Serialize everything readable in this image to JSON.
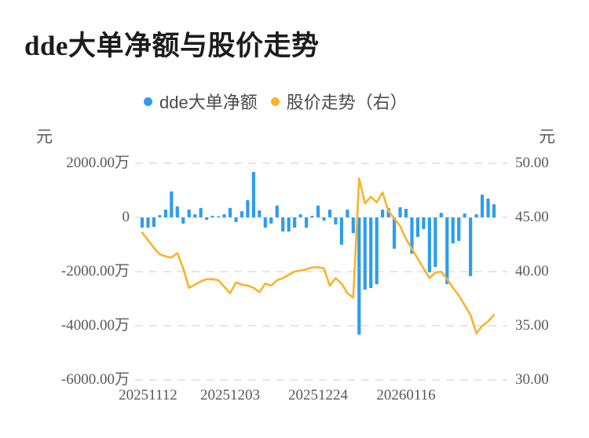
{
  "header": {
    "title": "dde大单净额与股价走势"
  },
  "legend": {
    "items": [
      {
        "label": "dde大单净额",
        "color": "#2E9CF0"
      },
      {
        "label": "股价走势（右）",
        "color": "#F8B42A"
      }
    ]
  },
  "axes": {
    "left_unit": "元",
    "right_unit": "元",
    "left_ticks": [
      "2000.00万",
      "0",
      "-2000.00万",
      "-4000.00万",
      "-6000.00万"
    ],
    "right_ticks": [
      "50.00",
      "45.00",
      "40.00",
      "35.00",
      "30.00"
    ],
    "x_ticks": [
      "20251112",
      "20251203",
      "20251224",
      "20260116"
    ]
  },
  "chart_data": {
    "type": "combo",
    "title": "dde大单净额与股价走势",
    "grid": {
      "horizontal_dashed": true
    },
    "left_axis": {
      "unit": "元",
      "tick_values_wan": [
        2000,
        0,
        -2000,
        -4000,
        -6000
      ],
      "range_wan": [
        -6000,
        2000
      ]
    },
    "right_axis": {
      "unit": "元",
      "tick_values": [
        50,
        45,
        40,
        35,
        30
      ],
      "range": [
        30,
        50
      ]
    },
    "x_axis": {
      "labels": [
        "20251112",
        "20251203",
        "20251224",
        "20260116"
      ],
      "label_indices": [
        1,
        15,
        30,
        45
      ]
    },
    "series": [
      {
        "name": "dde大单净额",
        "type": "bar",
        "yaxis": "left",
        "unit": "万元",
        "color": "#2E9CF0",
        "values": [
          -380,
          -380,
          -350,
          90,
          290,
          960,
          410,
          -230,
          290,
          120,
          350,
          -90,
          60,
          30,
          120,
          350,
          -170,
          230,
          640,
          1680,
          260,
          -380,
          -230,
          440,
          -520,
          -520,
          -380,
          120,
          -380,
          60,
          440,
          -120,
          290,
          -260,
          -1010,
          290,
          -580,
          -4330,
          -2670,
          -2610,
          -2470,
          290,
          350,
          -1160,
          380,
          320,
          -1340,
          -720,
          -430,
          -2030,
          -1830,
          170,
          -2460,
          -960,
          -870,
          150,
          -2170,
          120,
          840,
          700,
          490
        ]
      },
      {
        "name": "股价走势（右）",
        "type": "line",
        "yaxis": "right",
        "unit": "元",
        "color": "#F8B42A",
        "values": [
          43.6,
          42.9,
          42.2,
          41.6,
          41.4,
          41.3,
          41.7,
          40.3,
          38.5,
          38.8,
          39.1,
          39.3,
          39.3,
          39.2,
          38.6,
          38.0,
          39.0,
          38.8,
          38.7,
          38.5,
          38.1,
          38.9,
          38.7,
          39.2,
          39.4,
          39.7,
          40.0,
          40.1,
          40.2,
          40.4,
          40.4,
          40.3,
          38.7,
          39.4,
          38.9,
          38.0,
          37.6,
          48.6,
          46.3,
          46.9,
          46.4,
          47.3,
          45.6,
          44.9,
          44.2,
          43.0,
          42.1,
          41.2,
          40.3,
          39.4,
          39.9,
          40.0,
          39.3,
          38.5,
          37.8,
          36.9,
          36.0,
          34.3,
          35.0,
          35.4,
          36.0
        ]
      }
    ]
  },
  "colors": {
    "bar": "#2E9CF0",
    "line": "#F8B42A",
    "grid_line": "#E3E3E3",
    "axis_text": "#595959",
    "title_text": "#1C1C1C",
    "legend_text": "#4A4A4A"
  }
}
